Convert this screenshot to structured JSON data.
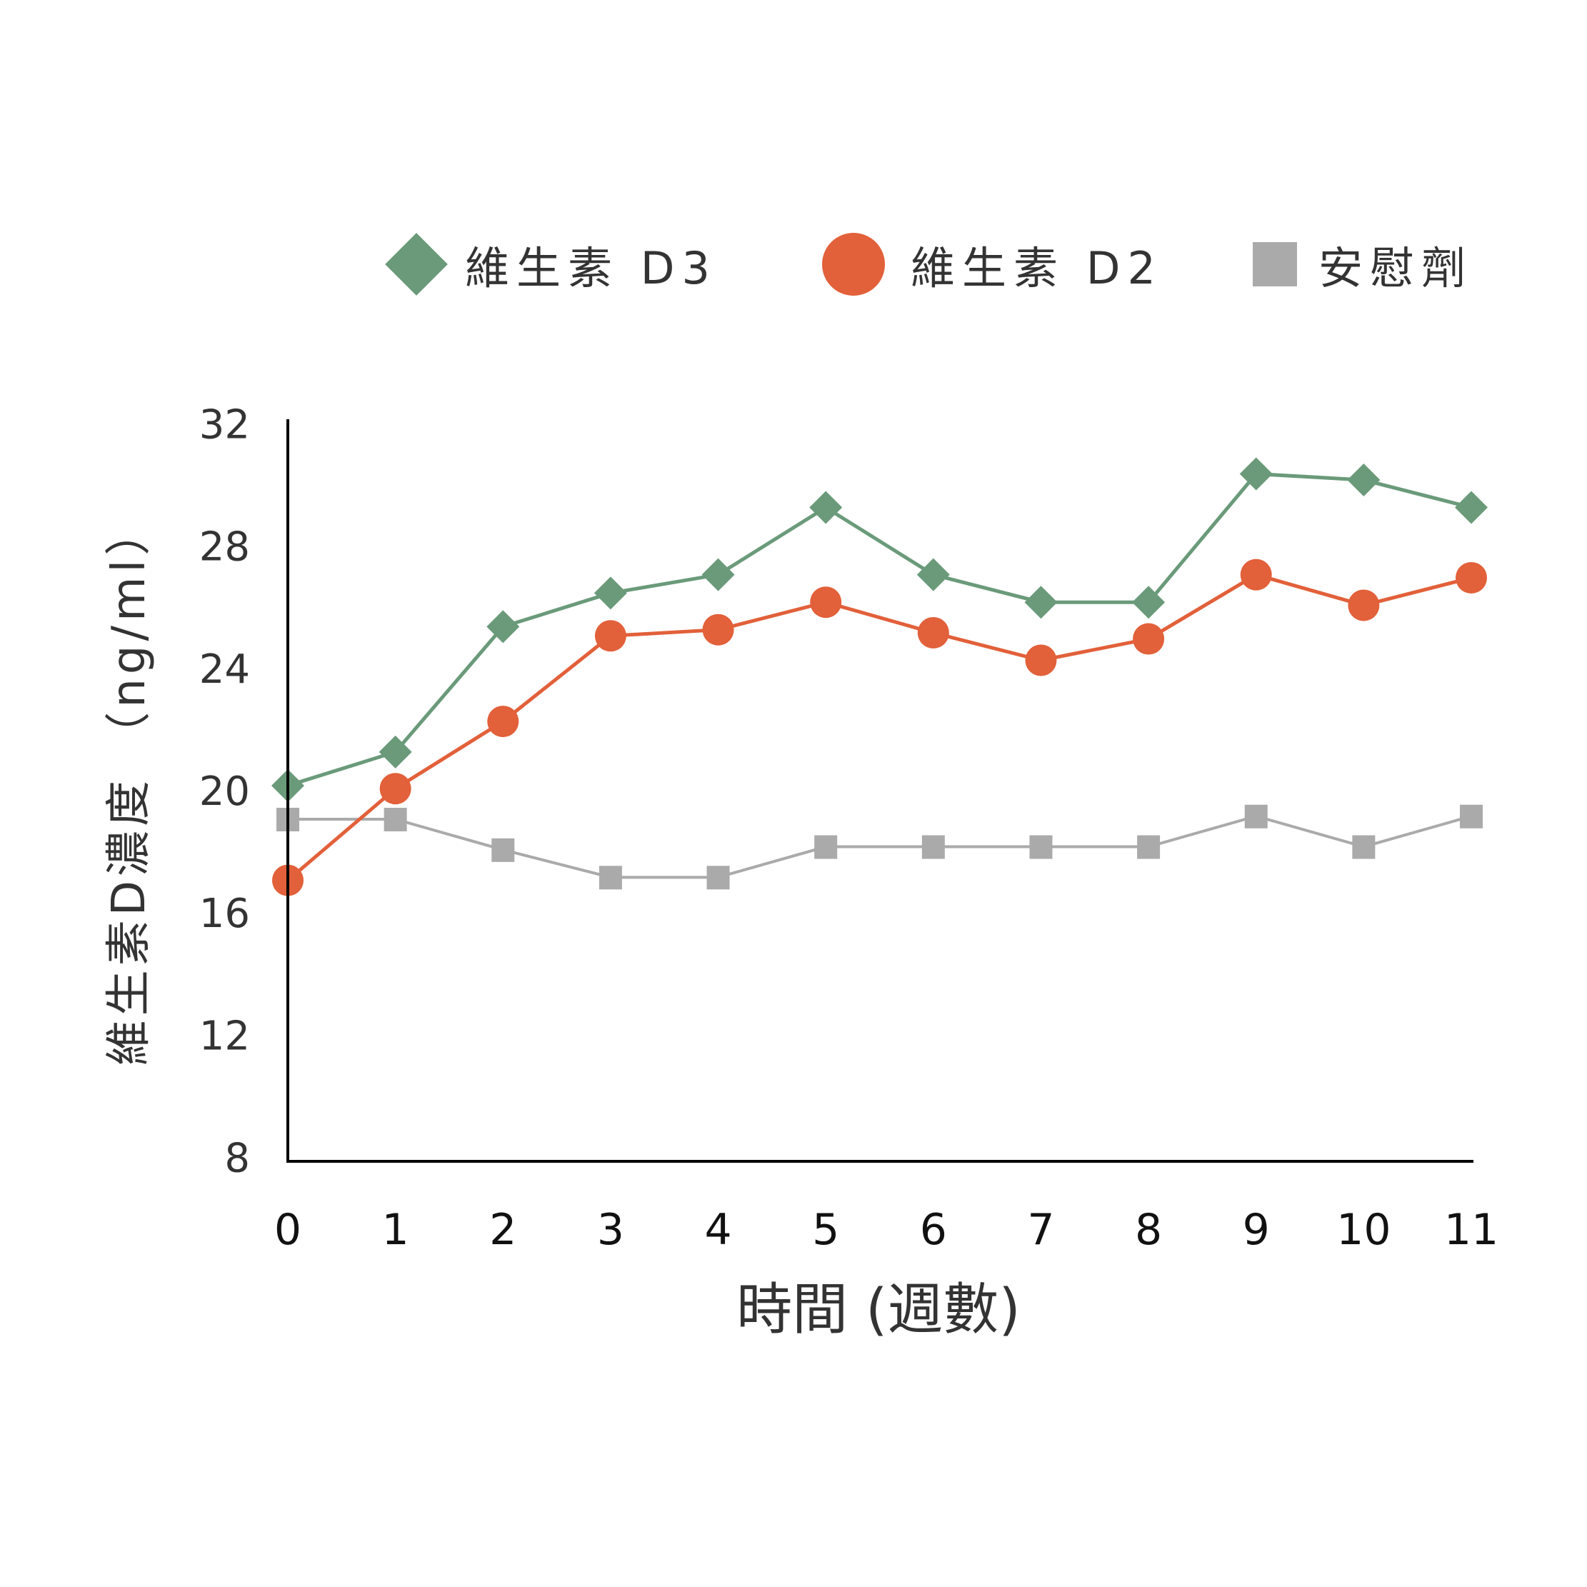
{
  "chart_data": {
    "type": "line",
    "title": "",
    "xlabel": "時間 (週數)",
    "ylabel": "維生素D濃度 （ng/ml）",
    "x": [
      0,
      1,
      2,
      3,
      4,
      5,
      6,
      7,
      8,
      9,
      10,
      11
    ],
    "x_tick_labels": [
      "0",
      "1",
      "2",
      "3",
      "4",
      "5",
      "6",
      "7",
      "8",
      "9",
      "10",
      "11"
    ],
    "y_ticks": [
      8,
      12,
      16,
      20,
      24,
      28,
      32
    ],
    "ylim": [
      8,
      32
    ],
    "xlim": [
      0,
      11
    ],
    "grid": false,
    "legend_position": "top",
    "series": [
      {
        "name": "維生素 D3",
        "marker": "diamond",
        "color": "#6a9a7a",
        "values": [
          20.2,
          21.3,
          25.4,
          26.5,
          27.1,
          29.3,
          27.1,
          26.2,
          26.2,
          30.4,
          30.2,
          29.3
        ]
      },
      {
        "name": "維生素 D2",
        "marker": "circle",
        "color": "#e2603a",
        "values": [
          17.1,
          20.1,
          22.3,
          25.1,
          25.3,
          26.2,
          25.2,
          24.3,
          25.0,
          27.1,
          26.1,
          27.0
        ]
      },
      {
        "name": "安慰劑",
        "marker": "square",
        "color": "#aaaaaa",
        "values": [
          19.1,
          19.1,
          18.1,
          17.2,
          17.2,
          18.2,
          18.2,
          18.2,
          18.2,
          19.2,
          18.2,
          19.2
        ]
      }
    ]
  },
  "legend": {
    "items": [
      {
        "label": "維生素 D3",
        "icon": "diamond-marker",
        "color": "#6a9a7a"
      },
      {
        "label": "維生素 D2",
        "icon": "circle-marker",
        "color": "#e2603a"
      },
      {
        "label": "安慰劑",
        "icon": "square-marker",
        "color": "#aaaaaa"
      }
    ]
  },
  "axes": {
    "x_title": "時間 (週數)",
    "y_title": "維生素D濃度 （ng/ml）",
    "axis_color": "#000000",
    "label_color": "#333333"
  }
}
